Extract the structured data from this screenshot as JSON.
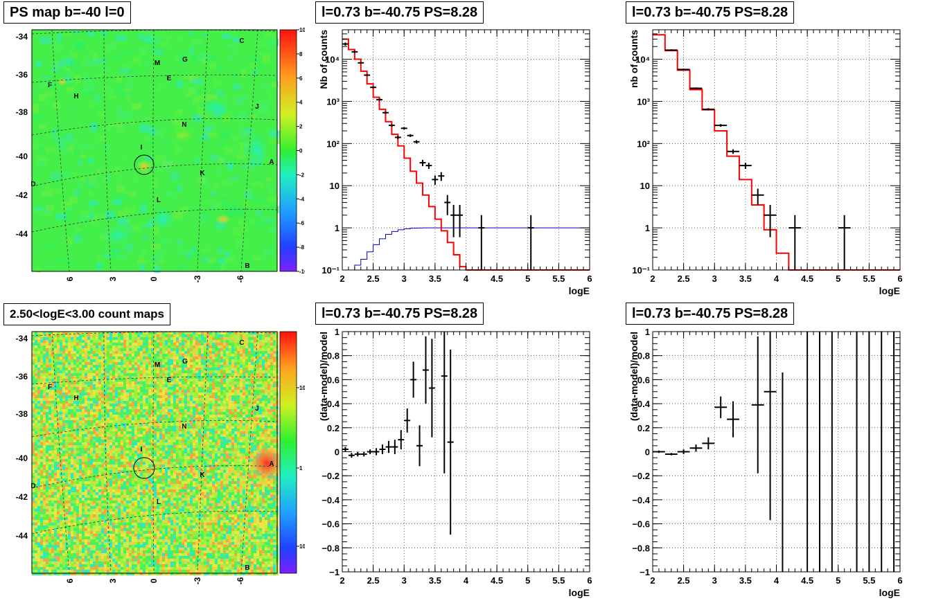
{
  "maps": {
    "top": {
      "title": "PS map b=-40 l=0",
      "y_ticks": [
        "-34",
        "-36",
        "-38",
        "-40",
        "-42",
        "-44"
      ],
      "x_ticks": [
        "6",
        "3",
        "0",
        "-3",
        "-6"
      ],
      "colorbar_ticks": [
        "10",
        "8",
        "6",
        "4",
        "2",
        "0",
        "-2",
        "-4",
        "-6",
        "-8",
        "-10"
      ],
      "sources": [
        "C",
        "M",
        "G",
        "F",
        "E",
        "H",
        "J",
        "N",
        "I",
        "A",
        "D",
        "K",
        "L",
        "B"
      ]
    },
    "bottom": {
      "title": "2.50<logE<3.00 count maps",
      "y_ticks": [
        "-34",
        "-36",
        "-38",
        "-40",
        "-42",
        "-44"
      ],
      "x_ticks": [
        "6",
        "3",
        "0",
        "-3",
        "-6"
      ],
      "colorbar_ticks": [
        "10",
        "1",
        "10⁻¹"
      ],
      "sources": [
        "C",
        "M",
        "G",
        "F",
        "E",
        "H",
        "J",
        "N",
        "I",
        "A",
        "D",
        "K",
        "L",
        "B"
      ]
    }
  },
  "chart_data": [
    {
      "type": "line",
      "title": "l=0.73 b=-40.75 PS=8.28",
      "xlabel": "logE",
      "ylabel": "Nb of counts",
      "xlim": [
        2,
        6
      ],
      "ylim": [
        0.1,
        50000
      ],
      "yscale": "log",
      "x_ticks": [
        "2",
        "2.5",
        "3",
        "3.5",
        "4",
        "4.5",
        "5",
        "5.5",
        "6"
      ],
      "y_ticks": [
        {
          "v": 0.1,
          "t": "10⁻¹"
        },
        {
          "v": 1,
          "t": "1"
        },
        {
          "v": 10,
          "t": "10"
        },
        {
          "v": 100,
          "t": "10²"
        },
        {
          "v": 1000,
          "t": "10³"
        },
        {
          "v": 10000,
          "t": "10⁴"
        }
      ],
      "grid": true,
      "model": {
        "color": "#ff0000",
        "edges": [
          2,
          2.1,
          2.2,
          2.3,
          2.4,
          2.5,
          2.6,
          2.7,
          2.8,
          2.9,
          3,
          3.1,
          3.2,
          3.3,
          3.4,
          3.5,
          3.6,
          3.7,
          3.8,
          3.9,
          4,
          4.1,
          4.2,
          6
        ],
        "values": [
          30000,
          17000,
          10000,
          5200,
          2600,
          1250,
          650,
          330,
          165,
          88,
          45,
          22,
          11.5,
          6,
          3.2,
          1.6,
          0.85,
          0.45,
          0.23,
          0.12,
          0.1,
          0.1,
          0.1
        ]
      },
      "signal": {
        "color": "#0000cc",
        "edges": [
          2,
          2.1,
          2.2,
          2.3,
          2.4,
          2.5,
          2.6,
          2.7,
          2.8,
          2.9,
          3,
          3.1,
          3.2,
          3.3,
          3.4,
          6
        ],
        "values": [
          0.1,
          0.1,
          0.13,
          0.18,
          0.27,
          0.4,
          0.55,
          0.7,
          0.82,
          0.9,
          0.95,
          0.98,
          0.99,
          1,
          1
        ]
      },
      "points": [
        {
          "x": 2.05,
          "y": 23000,
          "xe": 0.05,
          "lo": 21000,
          "hi": 25000
        },
        {
          "x": 2.2,
          "y": 15000,
          "xe": 0.05,
          "lo": 14000,
          "hi": 16000
        },
        {
          "x": 2.3,
          "y": 8200,
          "xe": 0.05,
          "lo": 7800,
          "hi": 8600
        },
        {
          "x": 2.4,
          "y": 4200,
          "xe": 0.05,
          "lo": 4000,
          "hi": 4400
        },
        {
          "x": 2.5,
          "y": 2150,
          "xe": 0.05,
          "lo": 2050,
          "hi": 2250
        },
        {
          "x": 2.6,
          "y": 1100,
          "xe": 0.05,
          "lo": 1030,
          "hi": 1170
        },
        {
          "x": 2.7,
          "y": 540,
          "xe": 0.05,
          "lo": 500,
          "hi": 580
        },
        {
          "x": 2.8,
          "y": 270,
          "xe": 0.05,
          "lo": 250,
          "hi": 290
        },
        {
          "x": 2.9,
          "y": 140,
          "xe": 0.05,
          "lo": 128,
          "hi": 152
        },
        {
          "x": 3.0,
          "y": 230,
          "xe": 0.05,
          "lo": 215,
          "hi": 245
        },
        {
          "x": 3.1,
          "y": 155,
          "xe": 0.05,
          "lo": 143,
          "hi": 167
        },
        {
          "x": 3.2,
          "y": 110,
          "xe": 0.05,
          "lo": 100,
          "hi": 120
        },
        {
          "x": 3.3,
          "y": 35,
          "xe": 0.05,
          "lo": 29,
          "hi": 41
        },
        {
          "x": 3.4,
          "y": 30,
          "xe": 0.05,
          "lo": 25,
          "hi": 35
        },
        {
          "x": 3.5,
          "y": 14,
          "xe": 0.05,
          "lo": 10.5,
          "hi": 17.5
        },
        {
          "x": 3.6,
          "y": 17,
          "xe": 0.05,
          "lo": 13,
          "hi": 21
        },
        {
          "x": 3.7,
          "y": 4,
          "xe": 0.05,
          "lo": 2,
          "hi": 6
        },
        {
          "x": 3.8,
          "y": 2,
          "xe": 0.05,
          "lo": 0.6,
          "hi": 3.5
        },
        {
          "x": 3.9,
          "y": 2,
          "xe": 0.05,
          "lo": 0.6,
          "hi": 3.5
        },
        {
          "x": 4.25,
          "y": 1,
          "xe": 0.05,
          "lo": 0.1,
          "hi": 2
        },
        {
          "x": 5.05,
          "y": 1,
          "xe": 0.05,
          "lo": 0.1,
          "hi": 2
        }
      ]
    },
    {
      "type": "line",
      "title": "l=0.73 b=-40.75 PS=8.28",
      "xlabel": "logE",
      "ylabel": "nb of counts",
      "xlim": [
        2,
        6
      ],
      "ylim": [
        0.1,
        50000
      ],
      "yscale": "log",
      "x_ticks": [
        "2",
        "2.5",
        "3",
        "3.5",
        "4",
        "4.5",
        "5",
        "5.5",
        "6"
      ],
      "y_ticks": [
        {
          "v": 0.1,
          "t": "10⁻¹"
        },
        {
          "v": 1,
          "t": "1"
        },
        {
          "v": 10,
          "t": "10"
        },
        {
          "v": 100,
          "t": "10²"
        },
        {
          "v": 1000,
          "t": "10³"
        },
        {
          "v": 10000,
          "t": "10⁴"
        }
      ],
      "grid": true,
      "model": {
        "color": "#ff0000",
        "edges": [
          2,
          2.2,
          2.4,
          2.6,
          2.8,
          3.0,
          3.2,
          3.4,
          3.6,
          3.8,
          4.0,
          4.2,
          6
        ],
        "values": [
          38000,
          16000,
          5500,
          1900,
          630,
          200,
          50,
          14,
          3.5,
          0.9,
          0.25,
          0.1
        ]
      },
      "points": [
        {
          "x": 2.3,
          "y": 16500,
          "xe": 0.1,
          "lo": 15800,
          "hi": 17200
        },
        {
          "x": 2.5,
          "y": 5700,
          "xe": 0.1,
          "lo": 5400,
          "hi": 6000
        },
        {
          "x": 2.7,
          "y": 2050,
          "xe": 0.1,
          "lo": 1950,
          "hi": 2150
        },
        {
          "x": 2.9,
          "y": 650,
          "xe": 0.1,
          "lo": 610,
          "hi": 690
        },
        {
          "x": 3.1,
          "y": 270,
          "xe": 0.1,
          "lo": 250,
          "hi": 290
        },
        {
          "x": 3.3,
          "y": 65,
          "xe": 0.1,
          "lo": 57,
          "hi": 73
        },
        {
          "x": 3.5,
          "y": 30,
          "xe": 0.1,
          "lo": 25,
          "hi": 35
        },
        {
          "x": 3.7,
          "y": 6,
          "xe": 0.1,
          "lo": 3.5,
          "hi": 8.5
        },
        {
          "x": 3.9,
          "y": 2,
          "xe": 0.1,
          "lo": 0.6,
          "hi": 3.5
        },
        {
          "x": 4.3,
          "y": 1,
          "xe": 0.1,
          "lo": 0.1,
          "hi": 2
        },
        {
          "x": 5.1,
          "y": 1,
          "xe": 0.1,
          "lo": 0.1,
          "hi": 2
        }
      ]
    },
    {
      "type": "scatter",
      "title": "l=0.73 b=-40.75 PS=8.28",
      "xlabel": "logE",
      "ylabel": "(data-model)/model",
      "xlim": [
        2,
        6
      ],
      "ylim": [
        -1,
        1
      ],
      "yscale": "linear",
      "x_ticks": [
        "2",
        "2.5",
        "3",
        "3.5",
        "4",
        "4.5",
        "5",
        "5.5",
        "6"
      ],
      "y_ticks": [
        {
          "v": -1,
          "t": "−1"
        },
        {
          "v": -0.8,
          "t": "−0.8"
        },
        {
          "v": -0.6,
          "t": "−0.6"
        },
        {
          "v": -0.4,
          "t": "−0.4"
        },
        {
          "v": -0.2,
          "t": "−0.2"
        },
        {
          "v": 0,
          "t": "0"
        },
        {
          "v": 0.2,
          "t": "0.2"
        },
        {
          "v": 0.4,
          "t": "0.4"
        },
        {
          "v": 0.6,
          "t": "0.6"
        },
        {
          "v": 0.8,
          "t": "0.8"
        },
        {
          "v": 1,
          "t": "1"
        }
      ],
      "grid": true,
      "points": [
        {
          "x": 2.05,
          "y": 0.02,
          "xe": 0.05,
          "lo": 0.0,
          "hi": 0.04
        },
        {
          "x": 2.15,
          "y": -0.03,
          "xe": 0.05,
          "lo": -0.05,
          "hi": -0.01
        },
        {
          "x": 2.25,
          "y": -0.02,
          "xe": 0.05,
          "lo": -0.04,
          "hi": 0.0
        },
        {
          "x": 2.35,
          "y": -0.02,
          "xe": 0.05,
          "lo": -0.04,
          "hi": 0.0
        },
        {
          "x": 2.45,
          "y": 0.0,
          "xe": 0.05,
          "lo": -0.02,
          "hi": 0.02
        },
        {
          "x": 2.55,
          "y": 0.0,
          "xe": 0.05,
          "lo": -0.03,
          "hi": 0.03
        },
        {
          "x": 2.65,
          "y": 0.02,
          "xe": 0.05,
          "lo": -0.02,
          "hi": 0.06
        },
        {
          "x": 2.75,
          "y": 0.04,
          "xe": 0.05,
          "lo": -0.01,
          "hi": 0.09
        },
        {
          "x": 2.85,
          "y": 0.04,
          "xe": 0.05,
          "lo": -0.02,
          "hi": 0.1
        },
        {
          "x": 2.95,
          "y": 0.1,
          "xe": 0.05,
          "lo": 0.02,
          "hi": 0.18
        },
        {
          "x": 3.05,
          "y": 0.26,
          "xe": 0.05,
          "lo": 0.16,
          "hi": 0.36
        },
        {
          "x": 3.15,
          "y": 0.6,
          "xe": 0.05,
          "lo": 0.45,
          "hi": 0.75
        },
        {
          "x": 3.25,
          "y": 0.05,
          "xe": 0.05,
          "lo": -0.12,
          "hi": 0.22
        },
        {
          "x": 3.35,
          "y": 0.68,
          "xe": 0.05,
          "lo": 0.4,
          "hi": 0.96
        },
        {
          "x": 3.45,
          "y": 0.53,
          "xe": 0.05,
          "lo": 0.12,
          "hi": 0.94
        },
        {
          "x": 3.65,
          "y": 0.63,
          "xe": 0.05,
          "lo": -0.18,
          "hi": 1.0
        },
        {
          "x": 3.75,
          "y": 0.08,
          "xe": 0.05,
          "lo": -0.69,
          "hi": 0.85
        }
      ]
    },
    {
      "type": "scatter",
      "title": "l=0.73 b=-40.75 PS=8.28",
      "xlabel": "logE",
      "ylabel": "(data-model)/model",
      "xlim": [
        2,
        6
      ],
      "ylim": [
        -1,
        1
      ],
      "yscale": "linear",
      "x_ticks": [
        "2",
        "2.5",
        "3",
        "3.5",
        "4",
        "4.5",
        "5",
        "5.5",
        "6"
      ],
      "y_ticks": [
        {
          "v": -1,
          "t": "−1"
        },
        {
          "v": -0.8,
          "t": "−0.8"
        },
        {
          "v": -0.6,
          "t": "−0.6"
        },
        {
          "v": -0.4,
          "t": "−0.4"
        },
        {
          "v": -0.2,
          "t": "−0.2"
        },
        {
          "v": 0,
          "t": "0"
        },
        {
          "v": 0.2,
          "t": "0.2"
        },
        {
          "v": 0.4,
          "t": "0.4"
        },
        {
          "v": 0.6,
          "t": "0.6"
        },
        {
          "v": 0.8,
          "t": "0.8"
        },
        {
          "v": 1,
          "t": "1"
        }
      ],
      "grid": true,
      "points": [
        {
          "x": 2.1,
          "y": 0.0,
          "xe": 0.1,
          "lo": -0.01,
          "hi": 0.01
        },
        {
          "x": 2.3,
          "y": -0.02,
          "xe": 0.1,
          "lo": -0.03,
          "hi": -0.01
        },
        {
          "x": 2.5,
          "y": 0.0,
          "xe": 0.1,
          "lo": -0.02,
          "hi": 0.02
        },
        {
          "x": 2.7,
          "y": 0.03,
          "xe": 0.1,
          "lo": 0.0,
          "hi": 0.06
        },
        {
          "x": 2.9,
          "y": 0.07,
          "xe": 0.1,
          "lo": 0.02,
          "hi": 0.12
        },
        {
          "x": 3.1,
          "y": 0.37,
          "xe": 0.1,
          "lo": 0.28,
          "hi": 0.46
        },
        {
          "x": 3.3,
          "y": 0.27,
          "xe": 0.1,
          "lo": 0.12,
          "hi": 0.42
        },
        {
          "x": 3.7,
          "y": 0.39,
          "xe": 0.1,
          "lo": -0.18,
          "hi": 0.96
        },
        {
          "x": 3.9,
          "y": 0.5,
          "xe": 0.1,
          "lo": -0.57,
          "hi": 1.0
        },
        {
          "x": 4.1,
          "y": -1.0,
          "xe": 0.0,
          "lo": -1.0,
          "hi": 0.66
        },
        {
          "x": 4.5,
          "y": 1.0,
          "xe": 0.0,
          "lo": -1.0,
          "hi": 1.0
        },
        {
          "x": 4.7,
          "y": 1.0,
          "xe": 0.0,
          "lo": -1.0,
          "hi": 1.0
        },
        {
          "x": 4.9,
          "y": 1.0,
          "xe": 0.0,
          "lo": -1.0,
          "hi": 1.0
        },
        {
          "x": 5.3,
          "y": 1.0,
          "xe": 0.0,
          "lo": -1.0,
          "hi": 1.0
        },
        {
          "x": 5.5,
          "y": 1.0,
          "xe": 0.0,
          "lo": -1.0,
          "hi": 1.0
        },
        {
          "x": 5.7,
          "y": 1.0,
          "xe": 0.0,
          "lo": -1.0,
          "hi": 1.0
        },
        {
          "x": 5.9,
          "y": 1.0,
          "xe": 0.0,
          "lo": -1.0,
          "hi": 1.0
        }
      ]
    }
  ]
}
